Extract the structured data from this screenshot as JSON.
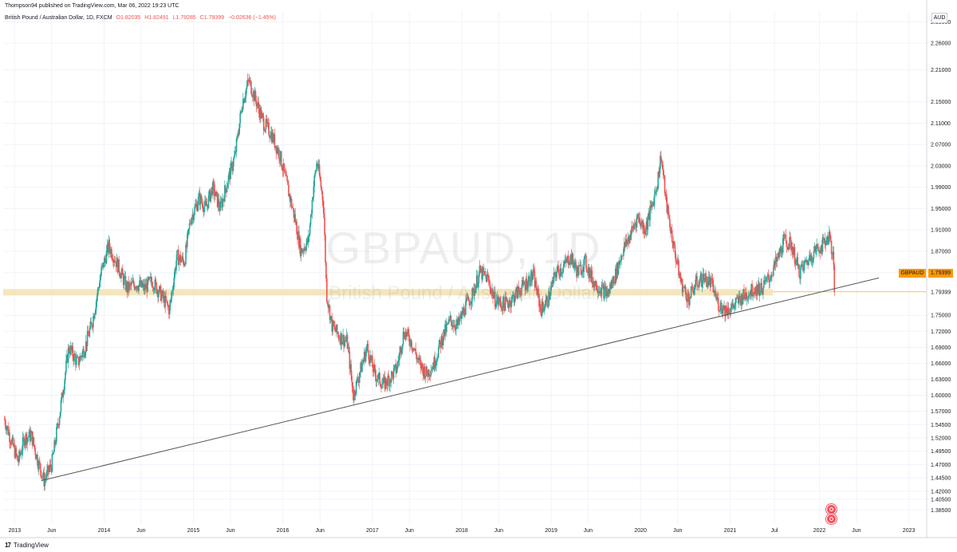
{
  "header": {
    "published_by": "Thompson94 published on TradingView.com, Mar 06, 2022 19:23 UTC",
    "instrument": "British Pound / Australian Dollar, 1D, FXCM",
    "ohlc": {
      "open": "O1.82035",
      "high": "H1.82491",
      "low": "L1.79285",
      "close": "C1.79399",
      "change": "−0.02636 (−1.45%)"
    },
    "currency": "AUD"
  },
  "watermark": {
    "symbol": "GBPAUD, 1D",
    "description": "British Pound / Australian Dollar"
  },
  "price_tag": {
    "symbol": "GBPAUD",
    "value": "1.79399"
  },
  "logo": {
    "mark": "17",
    "text": "TradingView"
  },
  "colors": {
    "up": "#26a69a",
    "down": "#ef5350",
    "zone": "#f2e2b0",
    "trendline": "#555555",
    "price_tag": "#ff9800",
    "marker": "#f7525f"
  },
  "icons": [
    "tradingview-logo-icon",
    "event-marker-icon"
  ],
  "chart_data": {
    "type": "candlestick",
    "title": "British Pound / Australian Dollar, 1D, FXCM",
    "ylim": [
      1.36,
      2.32
    ],
    "xlim": [
      "2012-11-15",
      "2023-03-15"
    ],
    "y_ticks": [
      2.3,
      2.26,
      2.21,
      2.15,
      2.11,
      2.07,
      2.03,
      1.99,
      1.95,
      1.91,
      1.87,
      1.83,
      1.79399,
      1.75,
      1.72,
      1.69,
      1.66,
      1.63,
      1.6,
      1.57,
      1.545,
      1.52,
      1.495,
      1.47,
      1.445,
      1.42,
      1.405,
      1.385
    ],
    "y_tick_labels": [
      "2.30000",
      "2.26000",
      "2.21000",
      "2.15000",
      "2.11000",
      "2.07000",
      "2.03000",
      "1.99000",
      "1.95000",
      "1.91000",
      "1.87000",
      "1.83000",
      "1.79399",
      "1.75000",
      "1.72000",
      "1.69000",
      "1.66000",
      "1.63000",
      "1.60000",
      "1.57000",
      "1.54500",
      "1.52000",
      "1.49500",
      "1.47000",
      "1.44500",
      "1.42000",
      "1.40500",
      "1.38500"
    ],
    "x_ticks": [
      "2013-01-01",
      "2013-06-01",
      "2014-01-01",
      "2014-06-01",
      "2015-01-01",
      "2015-06-01",
      "2016-01-01",
      "2016-06-01",
      "2017-01-01",
      "2017-06-01",
      "2018-01-01",
      "2018-06-01",
      "2019-01-01",
      "2019-06-01",
      "2020-01-01",
      "2020-06-01",
      "2021-01-01",
      "2021-07-01",
      "2022-01-01",
      "2022-06-01",
      "2023-01-01"
    ],
    "x_tick_labels": [
      "2013",
      "Jun",
      "2014",
      "Jun",
      "2015",
      "Jun",
      "2016",
      "Jun",
      "2017",
      "Jun",
      "2018",
      "Jun",
      "2019",
      "Jun",
      "2020",
      "Jun",
      "2021",
      "Jul",
      "2022",
      "Jun",
      "2023"
    ],
    "price_path": [
      [
        "2012-11-20",
        1.555
      ],
      [
        "2013-01-15",
        1.475
      ],
      [
        "2013-02-10",
        1.52
      ],
      [
        "2013-03-10",
        1.525
      ],
      [
        "2013-04-05",
        1.478
      ],
      [
        "2013-05-01",
        1.44
      ],
      [
        "2013-06-01",
        1.47
      ],
      [
        "2013-07-05",
        1.57
      ],
      [
        "2013-08-10",
        1.69
      ],
      [
        "2013-09-15",
        1.66
      ],
      [
        "2013-10-15",
        1.69
      ],
      [
        "2013-11-15",
        1.74
      ],
      [
        "2013-12-20",
        1.83
      ],
      [
        "2014-01-20",
        1.88
      ],
      [
        "2014-02-10",
        1.86
      ],
      [
        "2014-03-10",
        1.83
      ],
      [
        "2014-04-05",
        1.8
      ],
      [
        "2014-05-10",
        1.81
      ],
      [
        "2014-06-15",
        1.8
      ],
      [
        "2014-07-15",
        1.815
      ],
      [
        "2014-08-20",
        1.79
      ],
      [
        "2014-09-25",
        1.76
      ],
      [
        "2014-10-25",
        1.86
      ],
      [
        "2014-11-25",
        1.85
      ],
      [
        "2014-12-20",
        1.93
      ],
      [
        "2015-01-25",
        1.97
      ],
      [
        "2015-02-20",
        1.95
      ],
      [
        "2015-03-20",
        1.99
      ],
      [
        "2015-04-20",
        1.95
      ],
      [
        "2015-05-20",
        2.0
      ],
      [
        "2015-06-20",
        2.05
      ],
      [
        "2015-07-20",
        2.15
      ],
      [
        "2015-08-15",
        2.19
      ],
      [
        "2015-09-15",
        2.15
      ],
      [
        "2015-10-15",
        2.11
      ],
      [
        "2015-11-15",
        2.09
      ],
      [
        "2015-12-20",
        2.05
      ],
      [
        "2016-01-20",
        1.99
      ],
      [
        "2016-02-20",
        1.93
      ],
      [
        "2016-03-15",
        1.87
      ],
      [
        "2016-04-15",
        1.89
      ],
      [
        "2016-05-05",
        1.99
      ],
      [
        "2016-05-20",
        2.04
      ],
      [
        "2016-06-15",
        1.96
      ],
      [
        "2016-06-28",
        1.79
      ],
      [
        "2016-07-20",
        1.73
      ],
      [
        "2016-08-20",
        1.71
      ],
      [
        "2016-09-20",
        1.7
      ],
      [
        "2016-10-15",
        1.6
      ],
      [
        "2016-11-15",
        1.65
      ],
      [
        "2016-12-10",
        1.69
      ],
      [
        "2017-01-10",
        1.64
      ],
      [
        "2017-02-15",
        1.62
      ],
      [
        "2017-03-10",
        1.63
      ],
      [
        "2017-04-10",
        1.65
      ],
      [
        "2017-05-10",
        1.72
      ],
      [
        "2017-06-10",
        1.7
      ],
      [
        "2017-07-10",
        1.66
      ],
      [
        "2017-08-10",
        1.64
      ],
      [
        "2017-09-10",
        1.66
      ],
      [
        "2017-10-15",
        1.71
      ],
      [
        "2017-11-15",
        1.74
      ],
      [
        "2017-12-15",
        1.73
      ],
      [
        "2018-01-15",
        1.765
      ],
      [
        "2018-02-15",
        1.79
      ],
      [
        "2018-03-15",
        1.83
      ],
      [
        "2018-04-15",
        1.82
      ],
      [
        "2018-05-15",
        1.78
      ],
      [
        "2018-06-15",
        1.77
      ],
      [
        "2018-07-15",
        1.775
      ],
      [
        "2018-08-20",
        1.795
      ],
      [
        "2018-09-20",
        1.81
      ],
      [
        "2018-10-20",
        1.825
      ],
      [
        "2018-11-20",
        1.76
      ],
      [
        "2018-12-20",
        1.78
      ],
      [
        "2019-01-20",
        1.83
      ],
      [
        "2019-02-20",
        1.84
      ],
      [
        "2019-03-20",
        1.86
      ],
      [
        "2019-04-20",
        1.83
      ],
      [
        "2019-05-20",
        1.85
      ],
      [
        "2019-06-20",
        1.815
      ],
      [
        "2019-07-20",
        1.8
      ],
      [
        "2019-08-20",
        1.79
      ],
      [
        "2019-09-20",
        1.825
      ],
      [
        "2019-10-20",
        1.87
      ],
      [
        "2019-11-20",
        1.9
      ],
      [
        "2019-12-20",
        1.935
      ],
      [
        "2020-01-20",
        1.91
      ],
      [
        "2020-02-20",
        1.96
      ],
      [
        "2020-03-10",
        2.0
      ],
      [
        "2020-03-25",
        2.05
      ],
      [
        "2020-04-15",
        1.96
      ],
      [
        "2020-05-15",
        1.88
      ],
      [
        "2020-06-15",
        1.81
      ],
      [
        "2020-07-15",
        1.78
      ],
      [
        "2020-08-15",
        1.81
      ],
      [
        "2020-09-15",
        1.82
      ],
      [
        "2020-10-15",
        1.81
      ],
      [
        "2020-11-15",
        1.77
      ],
      [
        "2020-12-15",
        1.76
      ],
      [
        "2021-01-10",
        1.765
      ],
      [
        "2021-02-10",
        1.78
      ],
      [
        "2021-03-10",
        1.79
      ],
      [
        "2021-04-10",
        1.8
      ],
      [
        "2021-05-10",
        1.8
      ],
      [
        "2021-06-10",
        1.82
      ],
      [
        "2021-07-10",
        1.85
      ],
      [
        "2021-08-10",
        1.89
      ],
      [
        "2021-09-10",
        1.88
      ],
      [
        "2021-10-10",
        1.83
      ],
      [
        "2021-11-10",
        1.85
      ],
      [
        "2021-12-10",
        1.87
      ],
      [
        "2022-01-10",
        1.88
      ],
      [
        "2022-02-10",
        1.9
      ],
      [
        "2022-02-25",
        1.86
      ],
      [
        "2022-03-04",
        1.79399
      ]
    ],
    "support_zone": {
      "from": 1.787,
      "to": 1.799,
      "start": "2012-11-15",
      "end": "2021-06-25"
    },
    "trendline": {
      "start": [
        "2013-04-20",
        1.44
      ],
      "end": [
        "2022-09-01",
        1.82
      ]
    },
    "last_price": 1.79399
  }
}
